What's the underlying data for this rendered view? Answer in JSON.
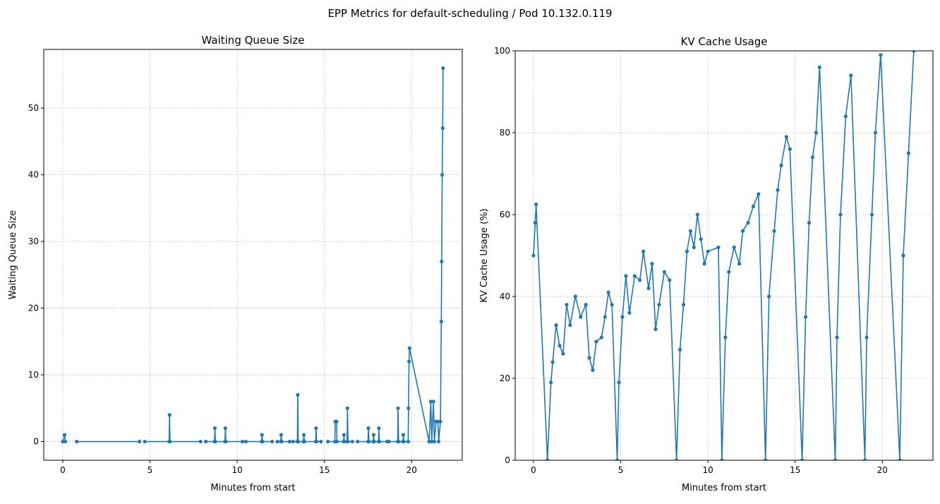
{
  "title": "EPP Metrics for default-scheduling / Pod 10.132.0.119",
  "chart_data": [
    {
      "type": "line",
      "title": "Waiting Queue Size",
      "xlabel": "Minutes from start",
      "ylabel": "Waiting Queue Size",
      "color": "#1f77b4",
      "grid": true,
      "xlim": [
        -1.09,
        22.9
      ],
      "ylim": [
        -2.8,
        58.8
      ],
      "xticks": [
        0,
        5,
        10,
        15,
        20
      ],
      "yticks": [
        0,
        10,
        20,
        30,
        40,
        50
      ],
      "x": [
        0,
        0.1,
        0.15,
        null,
        0.8,
        4.4,
        null,
        4.7,
        6.1,
        6.12,
        6.15,
        7.9,
        null,
        8.2,
        8.7,
        8.72,
        8.75,
        9.3,
        9.32,
        9.35,
        10.3,
        null,
        10.5,
        11.4,
        11.42,
        11.45,
        12.0,
        null,
        12.3,
        12.5,
        12.52,
        12.55,
        13.0,
        null,
        13.2,
        13.45,
        13.47,
        13.5,
        13.8,
        13.82,
        13.85,
        14.5,
        14.52,
        14.55,
        14.8,
        null,
        15.2,
        15.6,
        15.62,
        15.7,
        15.72,
        16.1,
        16.12,
        16.14,
        16.3,
        16.32,
        16.35,
        16.6,
        null,
        16.9,
        17.5,
        17.52,
        17.55,
        17.8,
        17.82,
        17.85,
        18.1,
        18.12,
        18.15,
        18.6,
        null,
        18.7,
        19.2,
        19.22,
        19.25,
        19.5,
        19.52,
        19.55,
        19.8,
        19.82,
        19.85,
        19.88,
        21.0,
        21.1,
        21.15,
        21.25,
        21.3,
        21.4,
        21.5,
        21.55,
        21.65,
        21.7,
        21.72,
        21.75,
        21.78,
        21.8
      ],
      "values": [
        0,
        1,
        0,
        null,
        0,
        0,
        null,
        0,
        0,
        4,
        0,
        0,
        null,
        0,
        0,
        2,
        0,
        0,
        2,
        0,
        0,
        null,
        0,
        0,
        1,
        0,
        0,
        null,
        0,
        0,
        1,
        0,
        0,
        null,
        0,
        0,
        7,
        0,
        0,
        1,
        0,
        0,
        2,
        0,
        0,
        null,
        0,
        0,
        3,
        3,
        0,
        0,
        1,
        0,
        0,
        5,
        0,
        0,
        null,
        0,
        0,
        2,
        0,
        0,
        1,
        0,
        0,
        2,
        0,
        0,
        null,
        0,
        0,
        5,
        0,
        0,
        1,
        0,
        0,
        5,
        12,
        14,
        0,
        6,
        0,
        6,
        0,
        3,
        3,
        0,
        3,
        18,
        27,
        40,
        47,
        56
      ]
    },
    {
      "type": "line",
      "title": "KV Cache Usage",
      "xlabel": "Minutes from start",
      "ylabel": "KV Cache Usage (%)",
      "color": "#1f77b4",
      "grid": true,
      "xlim": [
        -1.05,
        22.9
      ],
      "ylim": [
        0,
        100
      ],
      "xticks": [
        0,
        5,
        10,
        15,
        20
      ],
      "yticks": [
        0,
        20,
        40,
        60,
        80,
        100
      ],
      "x": [
        0,
        0.1,
        0.15,
        0.8,
        1.0,
        1.1,
        1.3,
        1.5,
        1.7,
        1.9,
        2.1,
        2.4,
        2.7,
        3.0,
        3.2,
        3.4,
        3.6,
        3.9,
        4.1,
        4.3,
        4.5,
        4.8,
        4.9,
        5.1,
        5.3,
        5.5,
        5.8,
        6.1,
        6.3,
        6.6,
        6.8,
        7.0,
        7.2,
        7.5,
        7.8,
        8.2,
        8.4,
        8.6,
        8.8,
        9.0,
        9.2,
        9.4,
        9.6,
        9.8,
        10.0,
        10.6,
        10.8,
        11.0,
        11.2,
        11.5,
        11.8,
        12.0,
        12.3,
        12.6,
        12.9,
        13.3,
        13.5,
        13.8,
        14.0,
        14.2,
        14.5,
        14.7,
        15.4,
        15.6,
        15.8,
        16.0,
        16.2,
        16.4,
        17.3,
        17.4,
        17.6,
        17.9,
        18.2,
        19.0,
        19.1,
        19.4,
        19.6,
        19.9,
        21.0,
        21.2,
        21.5,
        21.8
      ],
      "values": [
        50,
        58,
        62.5,
        0,
        19,
        24,
        33,
        28,
        26,
        38,
        33,
        40,
        35,
        38,
        25,
        22,
        29,
        30,
        35,
        41,
        38,
        0,
        19,
        35,
        45,
        36,
        45,
        44,
        51,
        42,
        48,
        32,
        38,
        46,
        44,
        0,
        27,
        38,
        51,
        56,
        52,
        60,
        54,
        48,
        51,
        52,
        0,
        30,
        46,
        52,
        48,
        56,
        58,
        62,
        65,
        0,
        40,
        56,
        66,
        72,
        79,
        76,
        0,
        35,
        58,
        74,
        80,
        96,
        0,
        30,
        60,
        84,
        94,
        0,
        30,
        60,
        80,
        99,
        0,
        50,
        75,
        100
      ]
    }
  ]
}
